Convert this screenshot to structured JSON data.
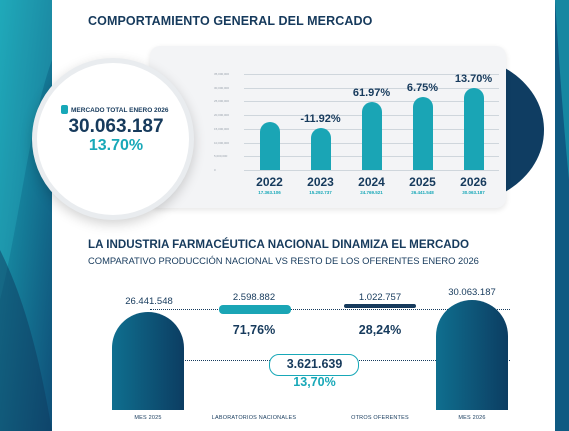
{
  "header": {
    "title": "COMPORTAMIENTO GENERAL DEL MERCADO"
  },
  "market_total": {
    "label": "MERCADO TOTAL ENERO 2026",
    "value": "30.063.187",
    "pct": "13.70%"
  },
  "colors": {
    "navy": "#163a5c",
    "teal": "#18a8b8",
    "light_bg": "#f3f4f6"
  },
  "chart_data": [
    {
      "type": "bar",
      "categories": [
        "2022",
        "2023",
        "2024",
        "2025",
        "2026"
      ],
      "values": [
        17363106,
        15292737,
        24769521,
        26441548,
        30063187
      ],
      "value_labels": [
        "17.363.106",
        "15.292.737",
        "24.769.521",
        "26.441.548",
        "30.063.187"
      ],
      "growth_labels": [
        "",
        "-11.92%",
        "61.97%",
        "6.75%",
        "13.70%"
      ],
      "ylim": [
        0,
        35000000
      ],
      "yticks": [
        "0",
        "5,000,000",
        "10,000,000",
        "15,000,000",
        "20,000,000",
        "25,000,000",
        "30,000,000",
        "35,000,000"
      ],
      "grid": true
    }
  ],
  "section2": {
    "title": "LA INDUSTRIA FARMACÉUTICA NACIONAL DINAMIZA EL MERCADO",
    "subtitle": "COMPARATIVO PRODUCCIÓN NACIONAL VS RESTO DE LOS OFERENTES ENERO 2026"
  },
  "comparison": {
    "mes2025": {
      "value": "26.441.548",
      "label": "MES 2025"
    },
    "nacionales": {
      "value": "2.598.882",
      "pct": "71,76%",
      "label": "LABORATORIOS NACIONALES"
    },
    "otros": {
      "value": "1.022.757",
      "pct": "28,24%",
      "label": "OTROS OFERENTES"
    },
    "mes2026": {
      "value": "30.063.187",
      "label": "MES 2026"
    },
    "growth": {
      "value": "3.621.639",
      "pct": "13,70%"
    }
  }
}
